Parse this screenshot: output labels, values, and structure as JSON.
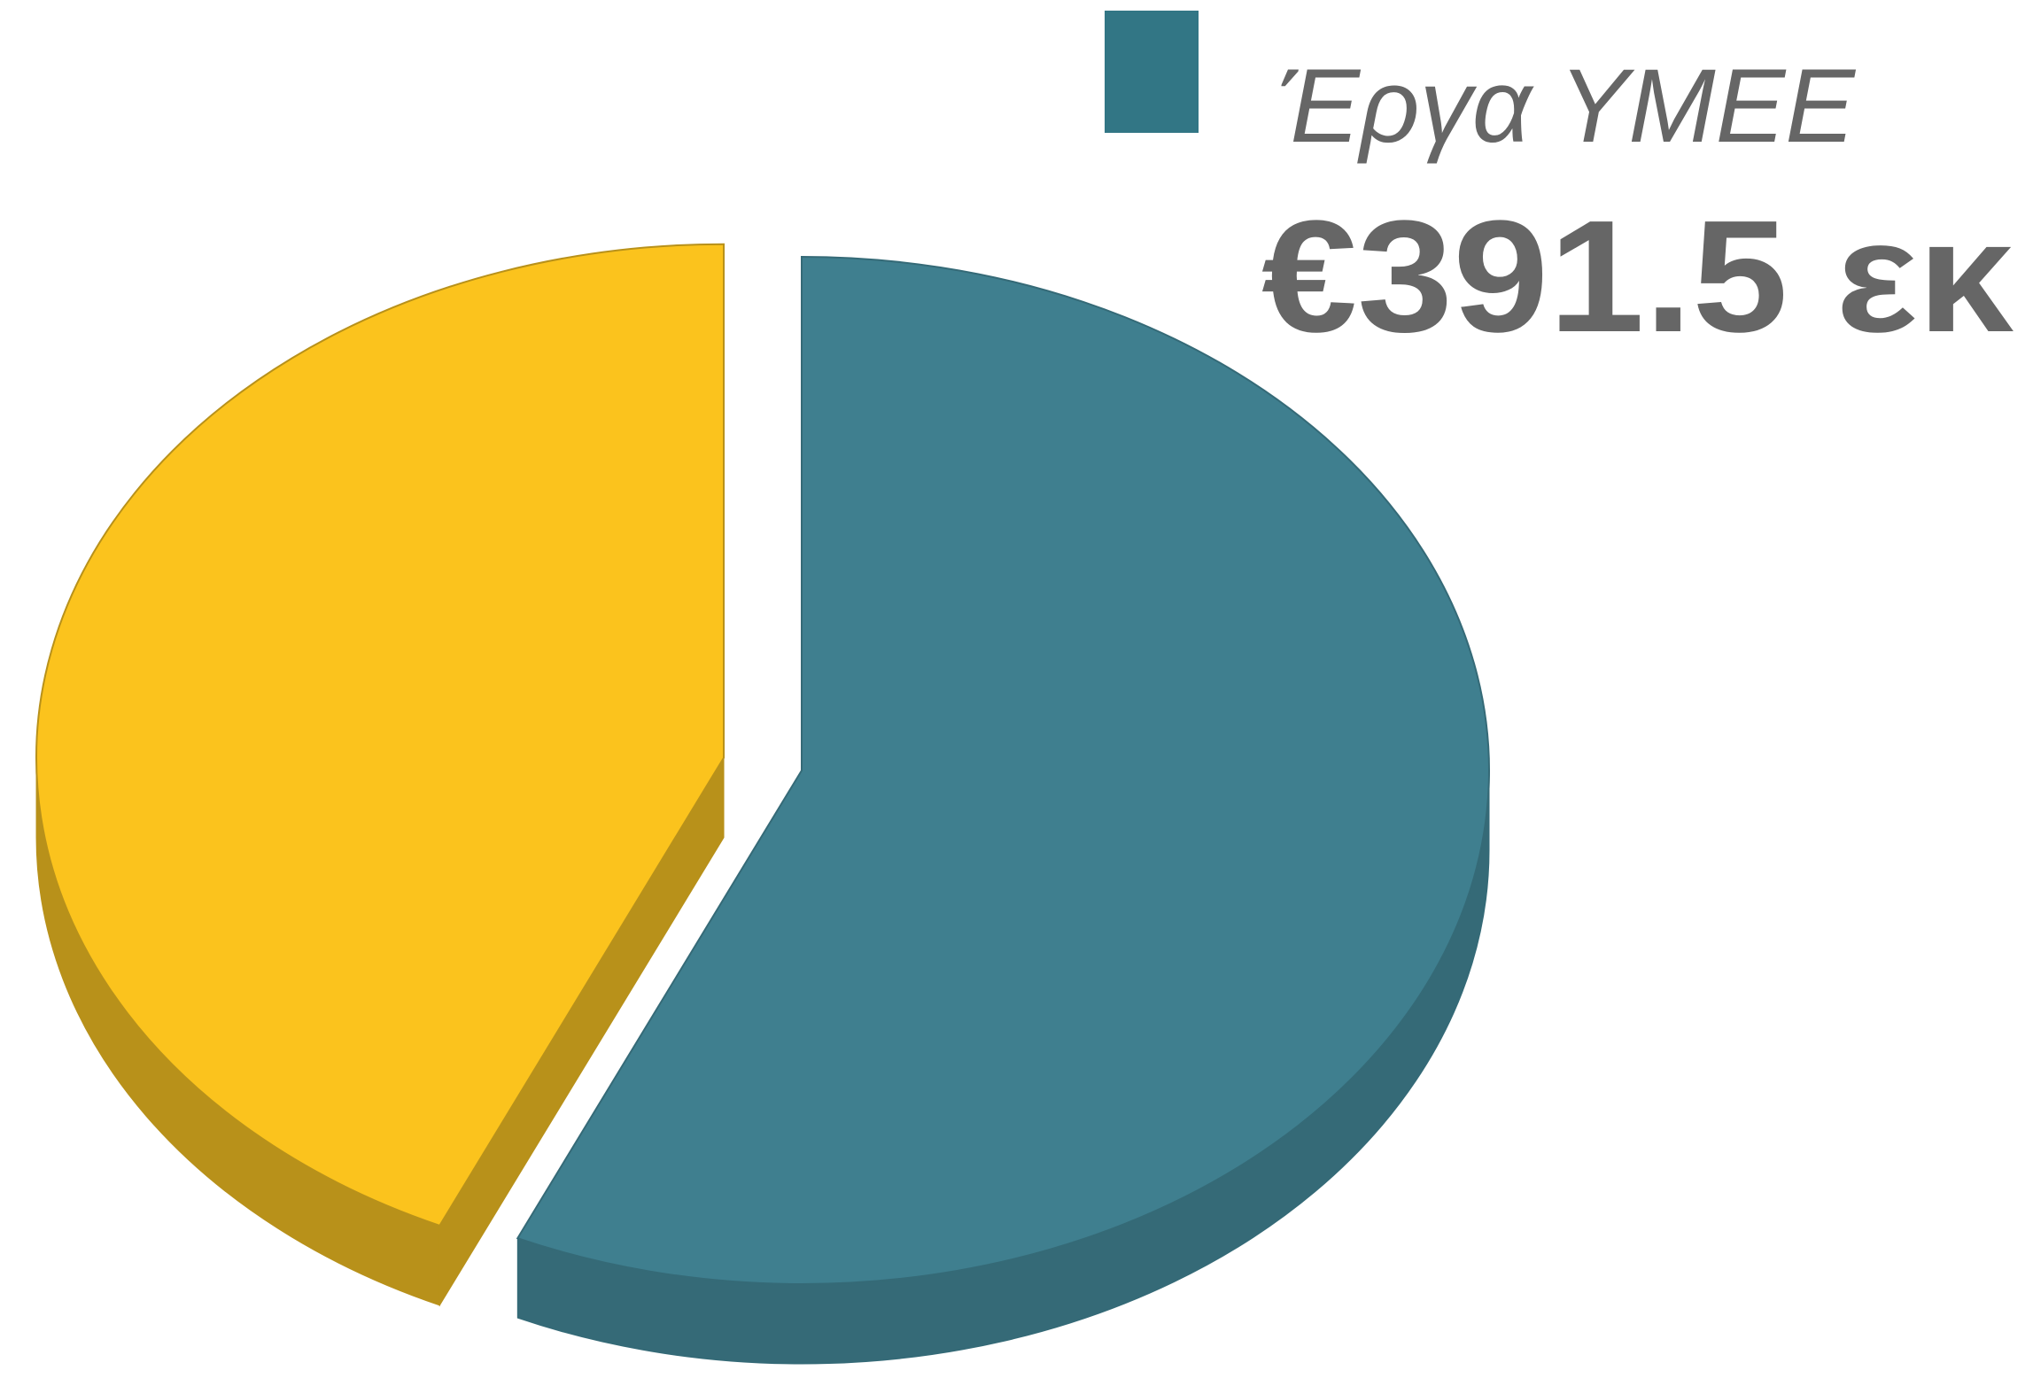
{
  "chart_data": {
    "type": "pie3d",
    "categories": [
      "Έργα ΥΜΕΕ",
      null
    ],
    "values": [
      391.5,
      298
    ],
    "value_labels": [
      "€391.5 εκ",
      null
    ],
    "colors": [
      "#3f7f8f",
      "#fbc31d"
    ],
    "side_colors": [
      "#356a77",
      "#b8911a"
    ],
    "legend_color": "#327685",
    "exploded": [
      false,
      true
    ]
  }
}
